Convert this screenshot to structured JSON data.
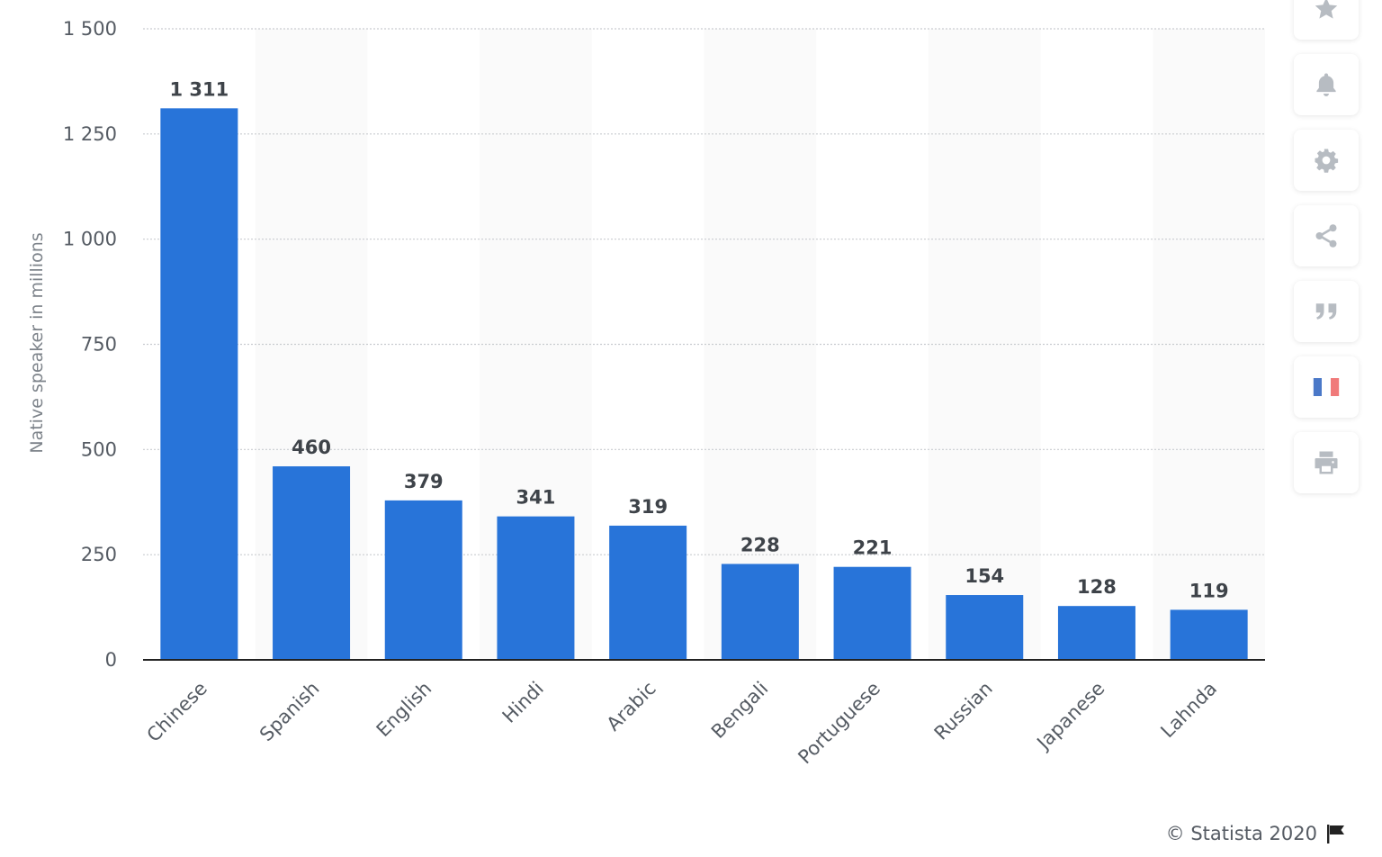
{
  "chart_data": {
    "type": "bar",
    "categories": [
      "Chinese",
      "Spanish",
      "English",
      "Hindi",
      "Arabic",
      "Bengali",
      "Portuguese",
      "Russian",
      "Japanese",
      "Lahnda"
    ],
    "values": [
      1311,
      460,
      379,
      341,
      319,
      228,
      221,
      154,
      128,
      119
    ],
    "value_labels": [
      "1 311",
      "460",
      "379",
      "341",
      "319",
      "228",
      "221",
      "154",
      "128",
      "119"
    ],
    "ylabel": "Native speaker in millions",
    "ylim": [
      0,
      1500
    ],
    "yticks": [
      0,
      250,
      500,
      750,
      1000,
      1250,
      1500
    ],
    "ytick_labels": [
      "0",
      "250",
      "500",
      "750",
      "1 000",
      "1 250",
      "1 500"
    ],
    "grid": true,
    "bar_color": "#2874d9",
    "alt_band_color": "#fafafa"
  },
  "toolbar": {
    "items": [
      {
        "icon": "star-icon",
        "name": "favorite-button"
      },
      {
        "icon": "bell-icon",
        "name": "notification-button"
      },
      {
        "icon": "gear-icon",
        "name": "settings-button"
      },
      {
        "icon": "share-icon",
        "name": "share-button"
      },
      {
        "icon": "quote-icon",
        "name": "citation-button"
      },
      {
        "icon": "flag-fr-icon",
        "name": "language-button"
      },
      {
        "icon": "print-icon",
        "name": "print-button"
      }
    ]
  },
  "footer": {
    "credit": "© Statista 2020",
    "flag_icon": "flag-icon"
  }
}
